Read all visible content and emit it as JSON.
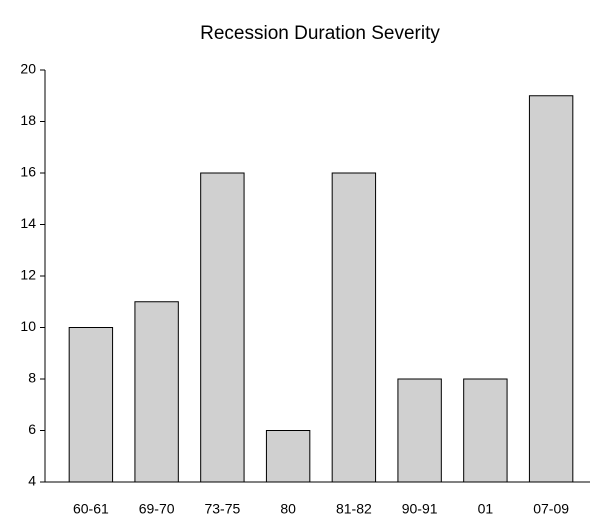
{
  "chart_data": {
    "type": "bar",
    "title": "Recession Duration Severity",
    "categories": [
      "60-61",
      "69-70",
      "73-75",
      "80",
      "81-82",
      "90-91",
      "01",
      "07-09"
    ],
    "values": [
      10,
      11,
      16,
      6,
      16,
      8,
      8,
      19
    ],
    "color": "#d0d0d0",
    "ylim": [
      4,
      20
    ],
    "yticks": [
      4,
      6,
      8,
      10,
      12,
      14,
      16,
      18,
      20
    ],
    "grid": false
  }
}
